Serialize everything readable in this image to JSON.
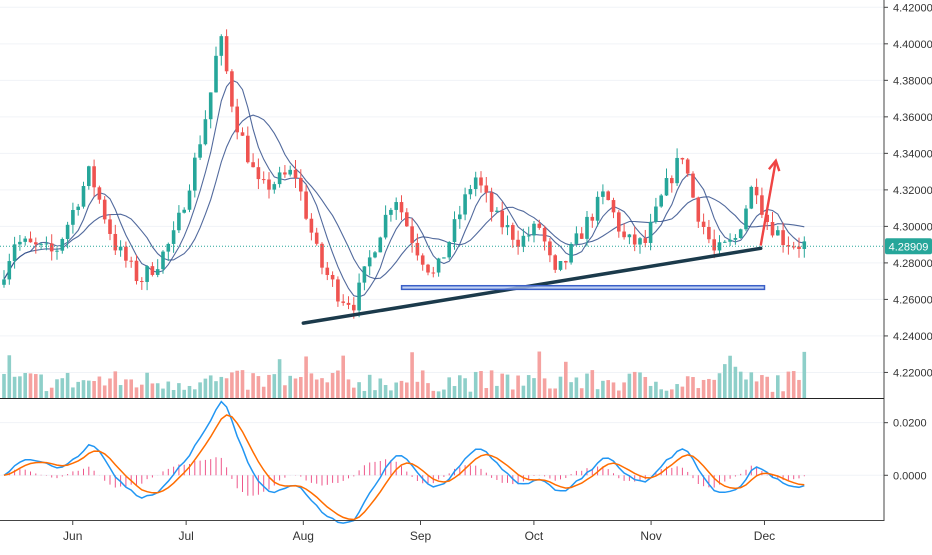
{
  "chart_data": {
    "type": "candlestick",
    "x_labels": [
      "Jun",
      "Jul",
      "Aug",
      "Sep",
      "Oct",
      "Nov",
      "Dec"
    ],
    "y_ticks": [
      "4.42000",
      "4.40000",
      "4.38000",
      "4.36000",
      "4.34000",
      "4.32000",
      "4.30000",
      "4.28000",
      "4.26000",
      "4.24000",
      "4.22000"
    ],
    "y_tick_values": [
      4.42,
      4.4,
      4.38,
      4.36,
      4.34,
      4.32,
      4.3,
      4.28,
      4.26,
      4.24,
      4.22
    ],
    "price_range": [
      4.206,
      4.424
    ],
    "last_price_label": "4.28909",
    "last_price": 4.28909,
    "macd_ticks": [
      "0.0200",
      "0.0000"
    ],
    "macd_tick_values": [
      0.02,
      0.0
    ],
    "macd_range": [
      -0.017,
      0.029
    ],
    "trendline": {
      "from": [
        "Aug 1",
        4.247
      ],
      "to": [
        "Nov 30",
        4.288
      ]
    },
    "support_zone": {
      "from": [
        "Aug 27",
        4.2655
      ],
      "to": [
        "Dec 1",
        4.2675
      ]
    },
    "projection_arrow": {
      "from": [
        "Nov 30",
        4.2895
      ],
      "to": [
        "Dec 4",
        4.336
      ]
    },
    "colors": {
      "up": "#26a69a",
      "down": "#ef5350",
      "volume_up": "#8ecfc9",
      "volume_down": "#f5a2a0",
      "ma_line": "#34508c",
      "macd_line": "#2196f3",
      "signal_line": "#ff6d00",
      "histogram": "#e91e63",
      "trendline": "#1b3a4b",
      "zone_fill": "#b3c7ee",
      "zone_stroke": "#3a5fc8",
      "arrow": "#ef4444",
      "last_price": "#26a69a"
    }
  }
}
